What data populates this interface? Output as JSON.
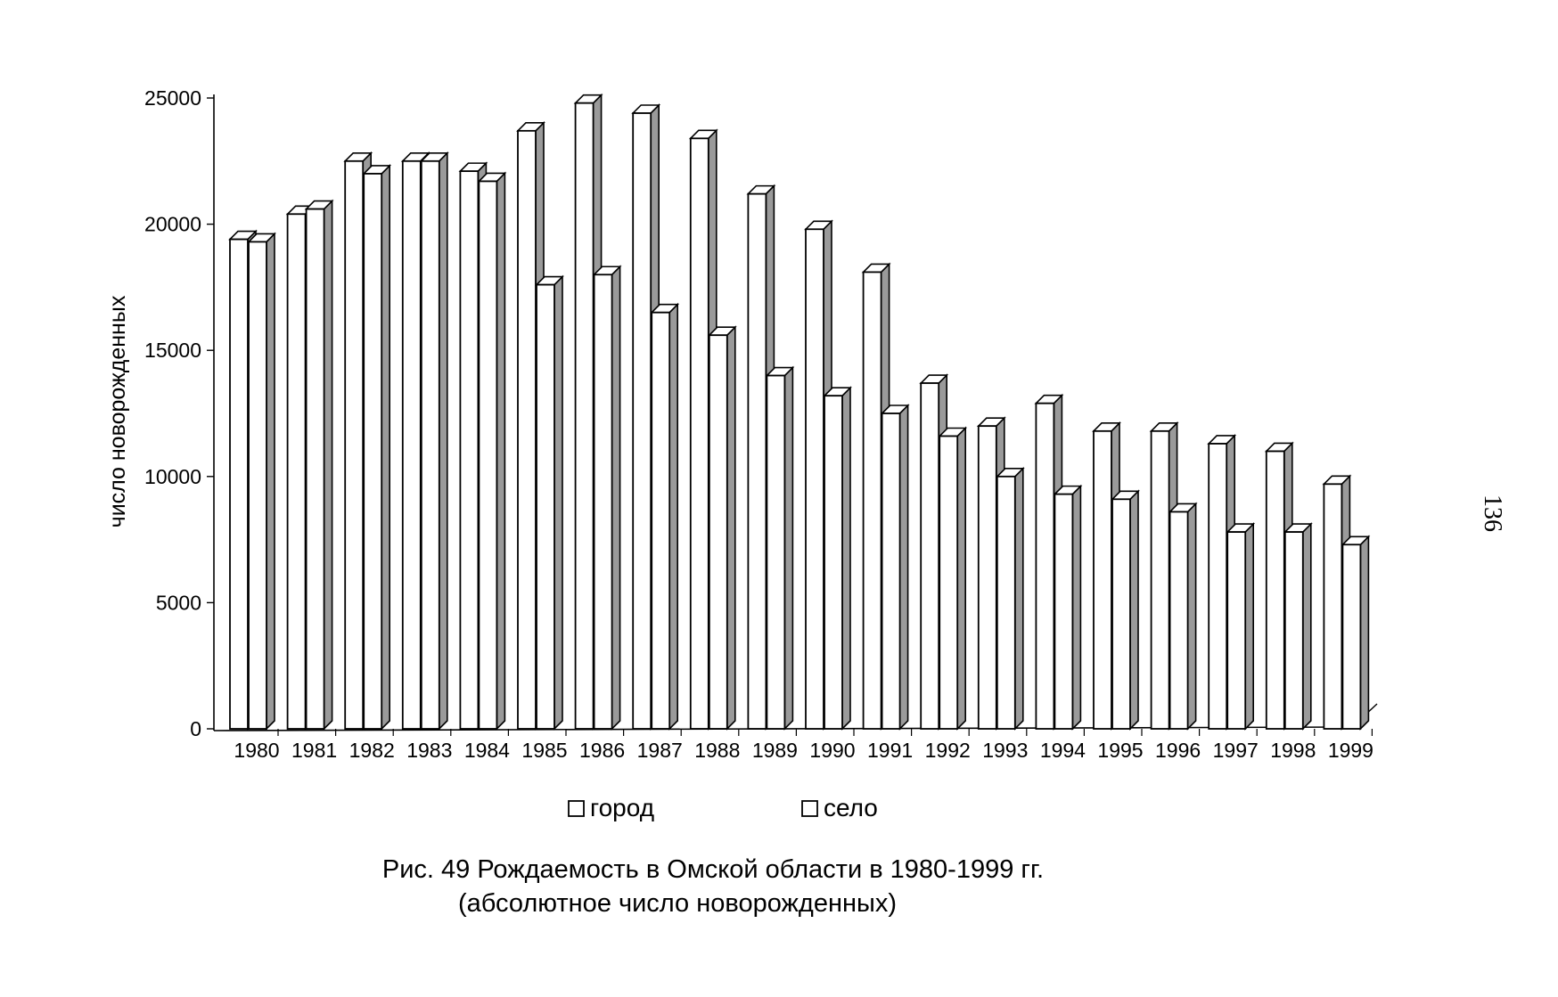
{
  "chart_data": {
    "type": "bar",
    "categories": [
      "1980",
      "1981",
      "1982",
      "1983",
      "1984",
      "1985",
      "1986",
      "1987",
      "1988",
      "1989",
      "1990",
      "1991",
      "1992",
      "1993",
      "1994",
      "1995",
      "1996",
      "1997",
      "1998",
      "1999"
    ],
    "series": [
      {
        "name": "город",
        "values": [
          19400,
          20400,
          22500,
          22500,
          22100,
          23700,
          24800,
          24400,
          23400,
          21200,
          19800,
          18100,
          13700,
          12000,
          12900,
          11800,
          11800,
          11300,
          11000,
          9700
        ]
      },
      {
        "name": "село",
        "values": [
          19300,
          20600,
          22000,
          22500,
          21700,
          17600,
          18000,
          16500,
          15600,
          14000,
          13200,
          12500,
          11600,
          10000,
          9300,
          9100,
          8600,
          7800,
          7800,
          7300
        ]
      }
    ],
    "ylabel": "число новорожденных",
    "ylim": [
      0,
      25000
    ],
    "yticks": [
      "0",
      "5000",
      "10000",
      "15000",
      "20000",
      "25000"
    ],
    "legend_position": "bottom",
    "grid": false,
    "colors": {
      "front": "#ffffff",
      "top": "#ffffff",
      "side": "#9a9a9a",
      "stroke": "#000000"
    }
  },
  "caption": {
    "line1": "Рис. 49 Рождаемость в Омской области в 1980-1999 гг.",
    "line2": "(абсолютное число новорожденных)"
  },
  "page_number": "136"
}
